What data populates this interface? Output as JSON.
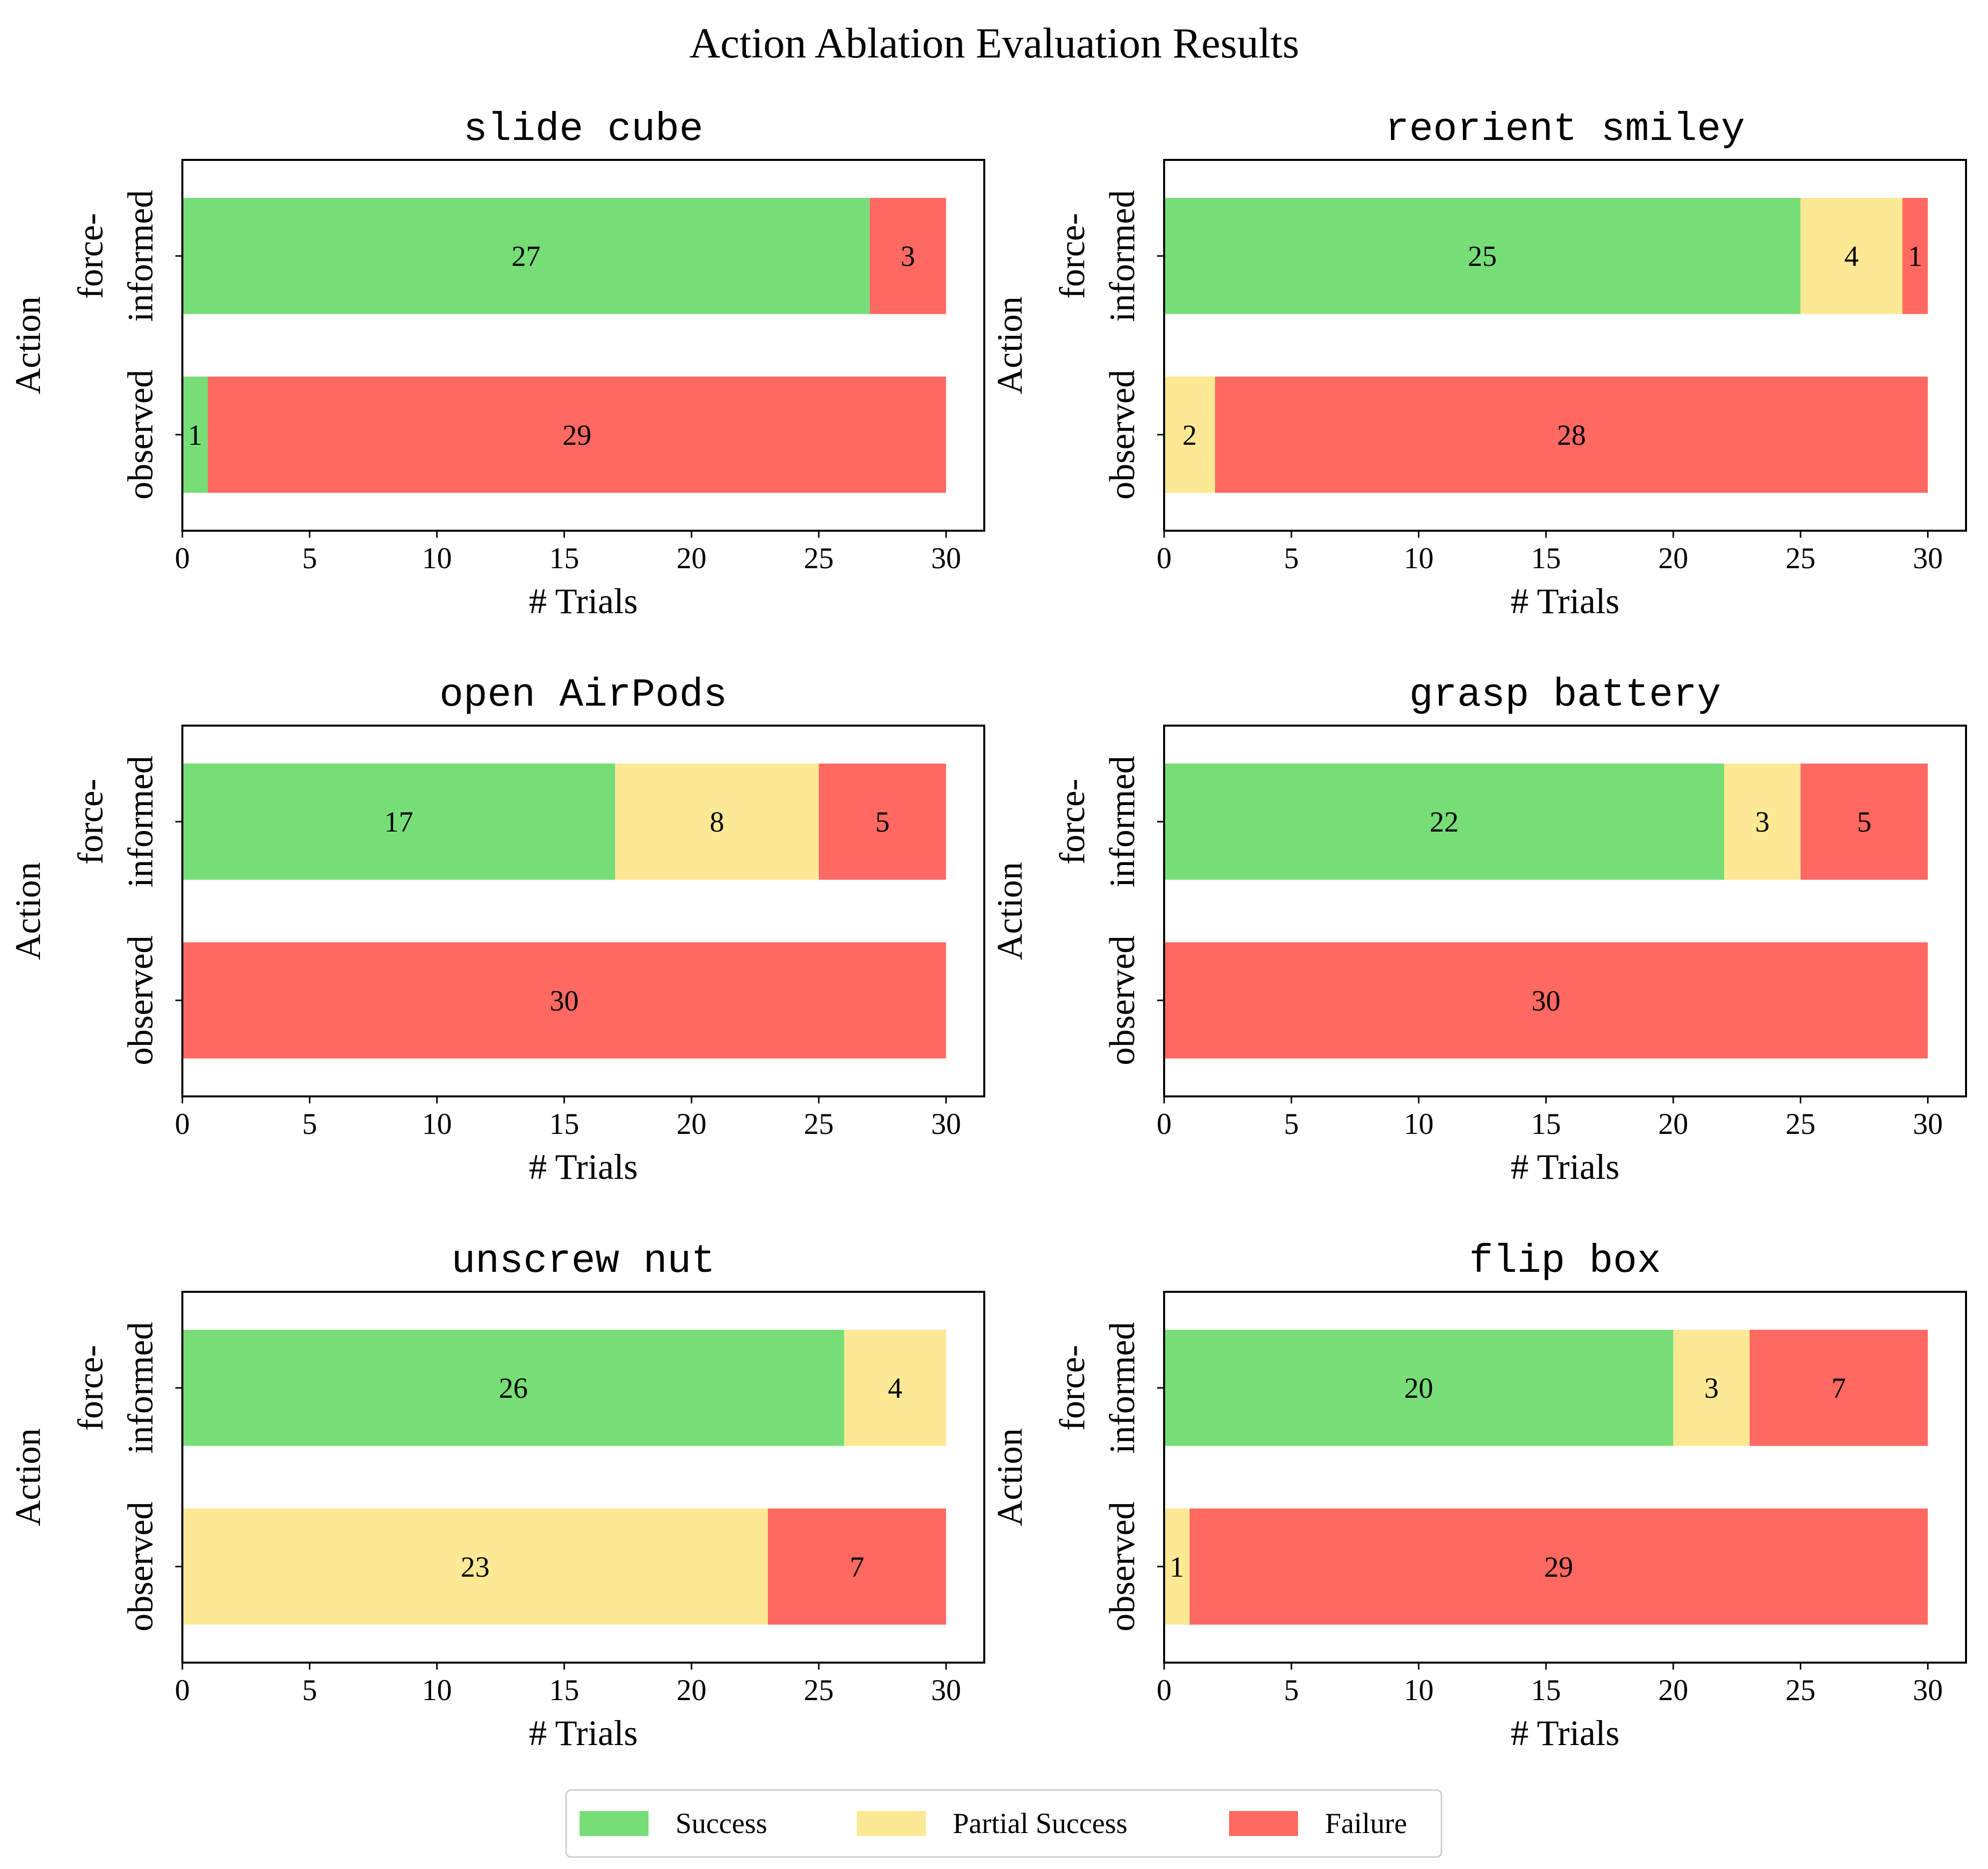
{
  "chart_data": {
    "type": "bar",
    "orientation": "horizontal",
    "stacked": true,
    "title": "Action Ablation Evaluation Results",
    "xlabel": "# Trials",
    "ylabel": "Action",
    "xlim": [
      0,
      31.5
    ],
    "xticks": [
      0,
      5,
      10,
      15,
      20,
      25,
      30
    ],
    "categories": [
      [
        "force-",
        "informed"
      ],
      [
        "observed"
      ]
    ],
    "legend": {
      "placement": "bottom-center",
      "entries": [
        {
          "name": "Success",
          "color": "#77dd77"
        },
        {
          "name": "Partial Success",
          "color": "#fde994"
        },
        {
          "name": "Failure",
          "color": "#ff6961"
        }
      ]
    },
    "panels": [
      {
        "title": "slide cube",
        "series": [
          {
            "name": "Success",
            "values": [
              27,
              1
            ]
          },
          {
            "name": "Partial Success",
            "values": [
              0,
              0
            ]
          },
          {
            "name": "Failure",
            "values": [
              3,
              29
            ]
          }
        ]
      },
      {
        "title": "reorient smiley",
        "series": [
          {
            "name": "Success",
            "values": [
              25,
              0
            ]
          },
          {
            "name": "Partial Success",
            "values": [
              4,
              2
            ]
          },
          {
            "name": "Failure",
            "values": [
              1,
              28
            ]
          }
        ]
      },
      {
        "title": "open AirPods",
        "series": [
          {
            "name": "Success",
            "values": [
              17,
              0
            ]
          },
          {
            "name": "Partial Success",
            "values": [
              8,
              0
            ]
          },
          {
            "name": "Failure",
            "values": [
              5,
              30
            ]
          }
        ]
      },
      {
        "title": "grasp battery",
        "series": [
          {
            "name": "Success",
            "values": [
              22,
              0
            ]
          },
          {
            "name": "Partial Success",
            "values": [
              3,
              0
            ]
          },
          {
            "name": "Failure",
            "values": [
              5,
              30
            ]
          }
        ]
      },
      {
        "title": "unscrew nut",
        "series": [
          {
            "name": "Success",
            "values": [
              26,
              0
            ]
          },
          {
            "name": "Partial Success",
            "values": [
              4,
              23
            ]
          },
          {
            "name": "Failure",
            "values": [
              0,
              7
            ]
          }
        ]
      },
      {
        "title": "flip box",
        "series": [
          {
            "name": "Success",
            "values": [
              20,
              0
            ]
          },
          {
            "name": "Partial Success",
            "values": [
              3,
              1
            ]
          },
          {
            "name": "Failure",
            "values": [
              7,
              29
            ]
          }
        ]
      }
    ]
  }
}
